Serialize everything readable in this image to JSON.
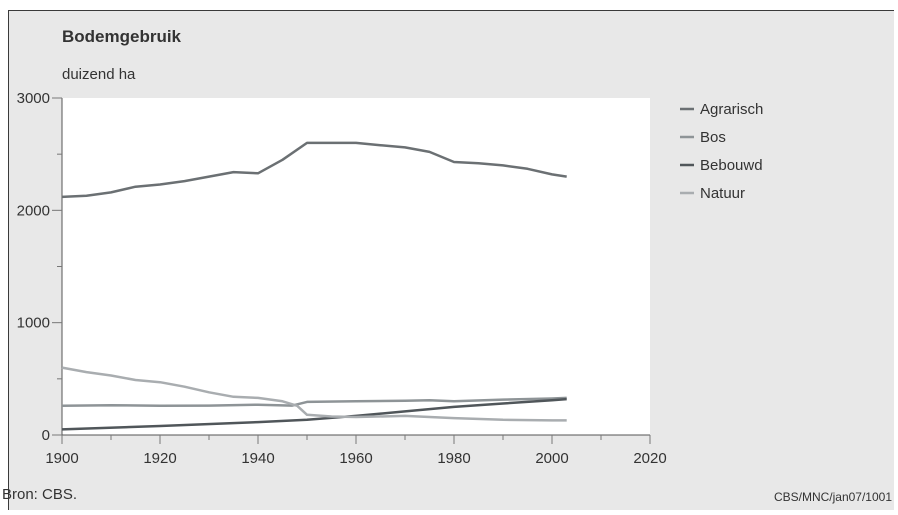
{
  "chart_data": {
    "type": "line",
    "title": "Bodemgebruik",
    "ylabel": "duizend ha",
    "xlim": [
      1900,
      2020
    ],
    "ylim": [
      0,
      3000
    ],
    "xticks": [
      1900,
      1920,
      1940,
      1960,
      1980,
      2000,
      2020
    ],
    "yticks": [
      0,
      1000,
      2000,
      3000
    ],
    "legend": "right",
    "grid": false,
    "series": [
      {
        "name": "Agrarisch",
        "color": "#6b7073",
        "points": [
          [
            1900,
            2120
          ],
          [
            1905,
            2130
          ],
          [
            1910,
            2160
          ],
          [
            1915,
            2210
          ],
          [
            1920,
            2230
          ],
          [
            1925,
            2260
          ],
          [
            1930,
            2300
          ],
          [
            1935,
            2340
          ],
          [
            1940,
            2330
          ],
          [
            1945,
            2450
          ],
          [
            1950,
            2600
          ],
          [
            1955,
            2600
          ],
          [
            1960,
            2600
          ],
          [
            1965,
            2580
          ],
          [
            1970,
            2560
          ],
          [
            1975,
            2520
          ],
          [
            1980,
            2430
          ],
          [
            1985,
            2420
          ],
          [
            1990,
            2400
          ],
          [
            1995,
            2370
          ],
          [
            2000,
            2320
          ],
          [
            2003,
            2300
          ]
        ]
      },
      {
        "name": "Bos",
        "color": "#8e9497",
        "points": [
          [
            1900,
            260
          ],
          [
            1910,
            265
          ],
          [
            1920,
            260
          ],
          [
            1930,
            262
          ],
          [
            1940,
            270
          ],
          [
            1947,
            262
          ],
          [
            1950,
            295
          ],
          [
            1960,
            300
          ],
          [
            1970,
            305
          ],
          [
            1975,
            310
          ],
          [
            1980,
            300
          ],
          [
            1990,
            315
          ],
          [
            2000,
            325
          ],
          [
            2003,
            330
          ]
        ]
      },
      {
        "name": "Bebouwd",
        "color": "#50565a",
        "points": [
          [
            1900,
            50
          ],
          [
            1920,
            80
          ],
          [
            1940,
            115
          ],
          [
            1950,
            135
          ],
          [
            1960,
            170
          ],
          [
            1970,
            210
          ],
          [
            1980,
            250
          ],
          [
            1990,
            280
          ],
          [
            2000,
            310
          ],
          [
            2003,
            320
          ]
        ]
      },
      {
        "name": "Natuur",
        "color": "#a9adb0",
        "points": [
          [
            1900,
            600
          ],
          [
            1905,
            560
          ],
          [
            1910,
            530
          ],
          [
            1915,
            490
          ],
          [
            1920,
            470
          ],
          [
            1925,
            430
          ],
          [
            1930,
            380
          ],
          [
            1935,
            340
          ],
          [
            1940,
            330
          ],
          [
            1945,
            300
          ],
          [
            1948,
            260
          ],
          [
            1950,
            180
          ],
          [
            1955,
            165
          ],
          [
            1960,
            160
          ],
          [
            1970,
            170
          ],
          [
            1980,
            150
          ],
          [
            1990,
            135
          ],
          [
            2000,
            130
          ],
          [
            2003,
            130
          ]
        ]
      }
    ]
  },
  "footer": {
    "source": "Bron: CBS.",
    "credit": "CBS/MNC/jan07/1001"
  }
}
